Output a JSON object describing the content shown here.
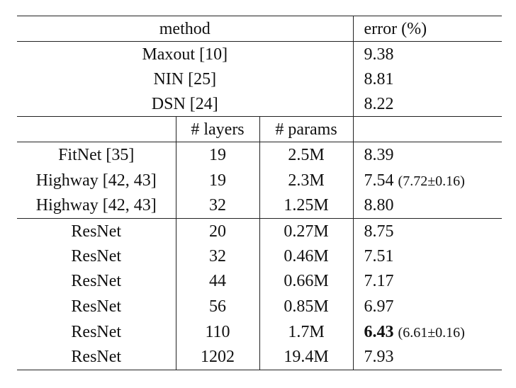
{
  "header": {
    "method": "method",
    "error": "error (%)"
  },
  "top_rows": [
    {
      "method": "Maxout [10]",
      "error": "9.38"
    },
    {
      "method": "NIN [25]",
      "error": "8.81"
    },
    {
      "method": "DSN [24]",
      "error": "8.22"
    }
  ],
  "subheader": {
    "layers": "# layers",
    "params": "# params"
  },
  "groups": [
    [
      {
        "method": "FitNet [35]",
        "layers": "19",
        "params": "2.5M",
        "error": "8.39"
      },
      {
        "method": "Highway [42, 43]",
        "layers": "19",
        "params": "2.3M",
        "error": "7.54",
        "note": "(7.72±0.16)"
      },
      {
        "method": "Highway [42, 43]",
        "layers": "32",
        "params": "1.25M",
        "error": "8.80"
      }
    ],
    [
      {
        "method": "ResNet",
        "layers": "20",
        "params": "0.27M",
        "error": "8.75"
      },
      {
        "method": "ResNet",
        "layers": "32",
        "params": "0.46M",
        "error": "7.51"
      },
      {
        "method": "ResNet",
        "layers": "44",
        "params": "0.66M",
        "error": "7.17"
      },
      {
        "method": "ResNet",
        "layers": "56",
        "params": "0.85M",
        "error": "6.97"
      },
      {
        "method": "ResNet",
        "layers": "110",
        "params": "1.7M",
        "error": "6.43",
        "bold": true,
        "note": "(6.61±0.16)"
      },
      {
        "method": "ResNet",
        "layers": "1202",
        "params": "19.4M",
        "error": "7.93"
      }
    ]
  ]
}
